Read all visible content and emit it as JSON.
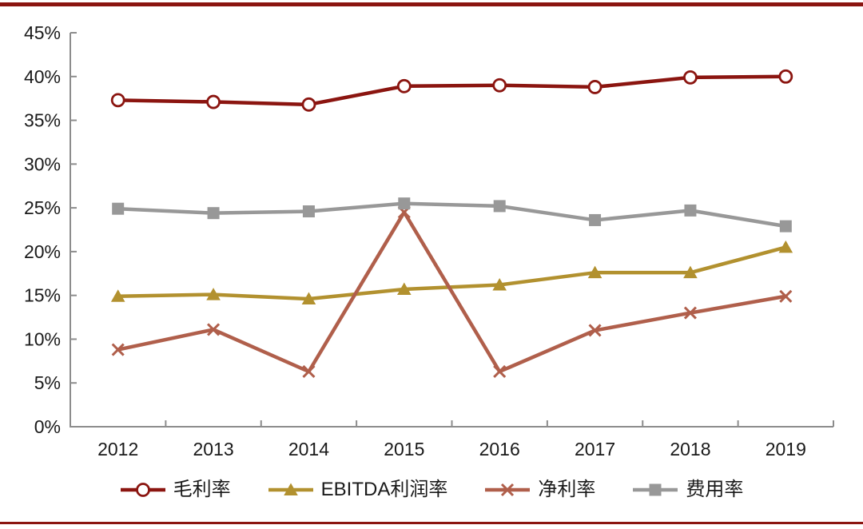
{
  "page": {
    "background": "#ffffff",
    "accent_border_color": "#8b1510"
  },
  "chart_data": {
    "type": "line",
    "title": "",
    "xlabel": "",
    "ylabel": "",
    "categories": [
      "2012",
      "2013",
      "2014",
      "2015",
      "2016",
      "2017",
      "2018",
      "2019"
    ],
    "series": [
      {
        "id": "gross-margin",
        "name": "毛利率",
        "color": "#8b1510",
        "marker": "circle-open",
        "line_width": 4.5,
        "z": 4,
        "values": [
          37.3,
          37.1,
          36.8,
          38.9,
          39.0,
          38.8,
          39.9,
          40.0
        ]
      },
      {
        "id": "ebitda-margin",
        "name": "EBITDA利润率",
        "color": "#b2912f",
        "marker": "triangle",
        "line_width": 4.5,
        "z": 1,
        "values": [
          14.9,
          15.1,
          14.6,
          15.7,
          16.2,
          17.6,
          17.6,
          20.5
        ]
      },
      {
        "id": "net-margin",
        "name": "净利率",
        "color": "#b05f4b",
        "marker": "x",
        "line_width": 4.5,
        "z": 2,
        "values": [
          8.8,
          11.1,
          6.3,
          24.5,
          6.3,
          11.0,
          13.0,
          14.9
        ]
      },
      {
        "id": "expense-ratio",
        "name": "费用率",
        "color": "#989898",
        "marker": "square",
        "line_width": 4.5,
        "z": 3,
        "values": [
          24.9,
          24.4,
          24.6,
          25.5,
          25.2,
          23.6,
          24.7,
          22.9
        ]
      }
    ],
    "ylim": [
      0,
      45
    ],
    "ytick_step": 5,
    "ytick_suffix": "%",
    "grid": false,
    "legend_position": "bottom",
    "axis_color": "#8c8c8c",
    "text_color": "#1a1a1a"
  }
}
